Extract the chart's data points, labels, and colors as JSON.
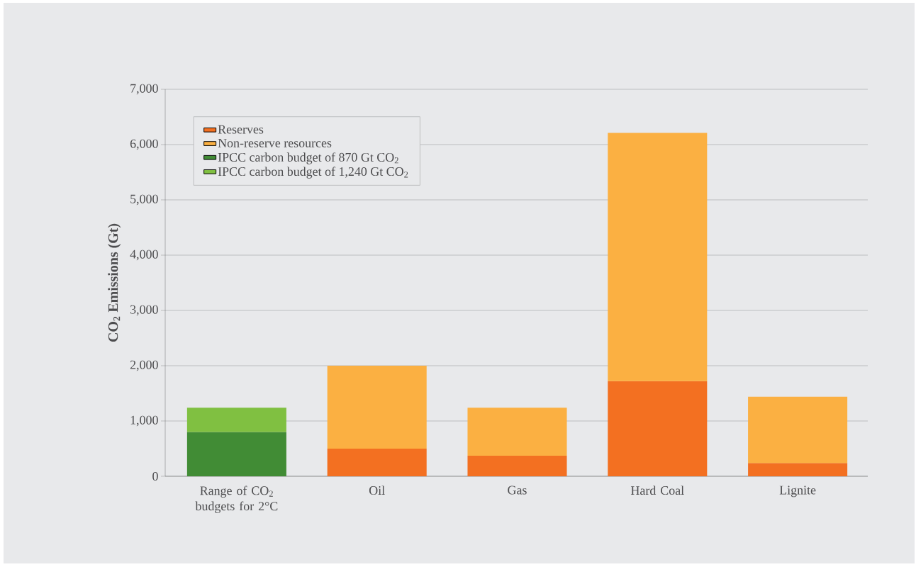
{
  "chart_data": {
    "type": "bar",
    "stacked": true,
    "ylabel": "CO$_{2}$ Emissions (Gt)",
    "categories": [
      "Range of CO$_{2}$ budgets for 2°C",
      "Oil",
      "Gas",
      "Hard Coal",
      "Lignite"
    ],
    "series": [
      {
        "name": "Reserves",
        "color": "#f37021",
        "values": [
          null,
          500,
          370,
          1720,
          240
        ]
      },
      {
        "name": "Non-reserve resources",
        "color": "#fbb042",
        "values": [
          null,
          1500,
          870,
          4490,
          1200
        ]
      },
      {
        "name": "IPCC carbon budget of 870 Gt CO$_{2}$",
        "color": "#418c35",
        "values": [
          800,
          null,
          null,
          null,
          null
        ]
      },
      {
        "name": "IPCC carbon budget of 1,240 Gt CO$_{2}$",
        "color": "#80c041",
        "values": [
          440,
          null,
          null,
          null,
          null
        ]
      }
    ],
    "ylim": [
      0,
      7000
    ],
    "yticks": [
      {
        "value": 0,
        "label": "0"
      },
      {
        "value": 1000,
        "label": "1,000"
      },
      {
        "value": 2000,
        "label": "2,000"
      },
      {
        "value": 3000,
        "label": "3,000"
      },
      {
        "value": 4000,
        "label": "4,000"
      },
      {
        "value": 5000,
        "label": "5,000"
      },
      {
        "value": 6000,
        "label": "6,000"
      },
      {
        "value": 7000,
        "label": "7,000"
      }
    ],
    "grid": "y",
    "legend": "top left"
  }
}
